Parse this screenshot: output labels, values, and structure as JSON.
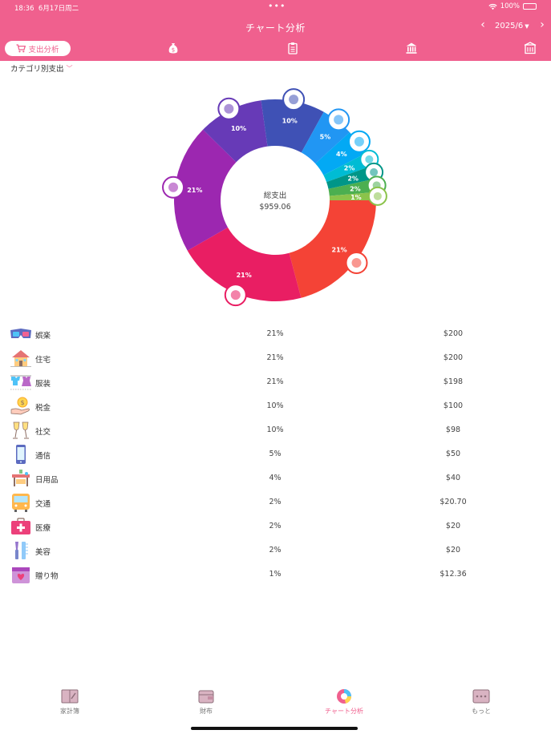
{
  "status_bar": {
    "time": "18:36",
    "date": "6月17日周二",
    "battery": "100%"
  },
  "header": {
    "title": "チャート分析",
    "month": "2025/6"
  },
  "segments": {
    "active_label": "支出分析"
  },
  "category_selector": {
    "label": "カテゴリ別支出"
  },
  "summary": {
    "label": "総支出",
    "total": "$959.06"
  },
  "colors": {
    "accent": "#f0608e"
  },
  "chart_data": {
    "type": "pie",
    "center_label": "総支出",
    "center_value": "$959.06",
    "slices": [
      {
        "name": "娯楽",
        "percent_label": "21%",
        "value": 200,
        "color": "#f44336"
      },
      {
        "name": "住宅",
        "percent_label": "21%",
        "value": 200,
        "color": "#e91e63"
      },
      {
        "name": "服装",
        "percent_label": "21%",
        "value": 198,
        "color": "#9c27b0"
      },
      {
        "name": "税金",
        "percent_label": "10%",
        "value": 100,
        "color": "#673ab7"
      },
      {
        "name": "社交",
        "percent_label": "10%",
        "value": 98,
        "color": "#3f51b5"
      },
      {
        "name": "通信",
        "percent_label": "5%",
        "value": 50,
        "color": "#2196f3"
      },
      {
        "name": "日用品",
        "percent_label": "4%",
        "value": 40,
        "color": "#03a9f4"
      },
      {
        "name": "交通",
        "percent_label": "2%",
        "value": 20.7,
        "color": "#00bcd4"
      },
      {
        "name": "医療",
        "percent_label": "2%",
        "value": 20,
        "color": "#009688"
      },
      {
        "name": "美容",
        "percent_label": "2%",
        "value": 20,
        "color": "#4caf50"
      },
      {
        "name": "贈り物",
        "percent_label": "1%",
        "value": 12.36,
        "color": "#8bc34a"
      }
    ]
  },
  "categories": [
    {
      "name": "娯楽",
      "percent": "21%",
      "amount": "$200",
      "icon": "glasses-3d-icon"
    },
    {
      "name": "住宅",
      "percent": "21%",
      "amount": "$200",
      "icon": "house-icon"
    },
    {
      "name": "服装",
      "percent": "21%",
      "amount": "$198",
      "icon": "clothes-icon"
    },
    {
      "name": "税金",
      "percent": "10%",
      "amount": "$100",
      "icon": "coin-hand-icon"
    },
    {
      "name": "社交",
      "percent": "10%",
      "amount": "$98",
      "icon": "champagne-icon"
    },
    {
      "name": "通信",
      "percent": "5%",
      "amount": "$50",
      "icon": "phone-icon"
    },
    {
      "name": "日用品",
      "percent": "4%",
      "amount": "$40",
      "icon": "furniture-icon"
    },
    {
      "name": "交通",
      "percent": "2%",
      "amount": "$20.70",
      "icon": "bus-icon"
    },
    {
      "name": "医療",
      "percent": "2%",
      "amount": "$20",
      "icon": "first-aid-icon"
    },
    {
      "name": "美容",
      "percent": "2%",
      "amount": "$20",
      "icon": "comb-icon"
    },
    {
      "name": "贈り物",
      "percent": "1%",
      "amount": "$12.36",
      "icon": "gift-icon"
    }
  ],
  "tabs": [
    {
      "label": "家計簿",
      "active": false
    },
    {
      "label": "財布",
      "active": false
    },
    {
      "label": "チャート分析",
      "active": true
    },
    {
      "label": "もっと",
      "active": false
    }
  ]
}
